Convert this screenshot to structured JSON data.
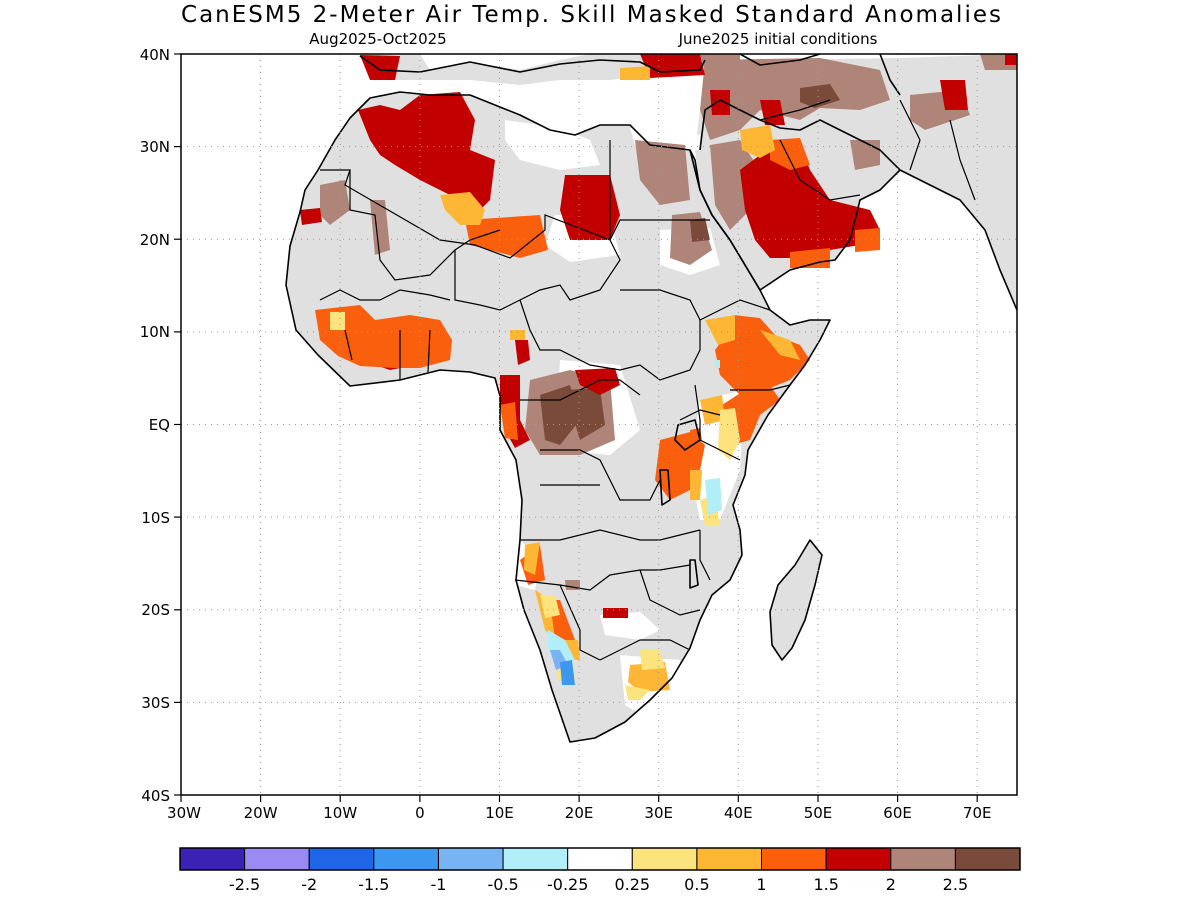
{
  "map": {
    "title": "CanESM5 2-Meter Air Temp. Skill Masked Standard Anomalies",
    "subtitle_left": "Aug2025-Oct2025",
    "subtitle_right": "June2025 initial conditions",
    "lat_labels": [
      "40N",
      "30N",
      "20N",
      "10N",
      "EQ",
      "10S",
      "20S",
      "30S",
      "40S"
    ],
    "lon_labels": [
      "30W",
      "20W",
      "10W",
      "0",
      "10E",
      "20E",
      "30E",
      "40E",
      "50E",
      "60E",
      "70E"
    ],
    "extent": {
      "lon_min": -30,
      "lon_max": 75,
      "lat_min": -40,
      "lat_max": 40
    },
    "masked_color": "#e0e0e0",
    "land_color": "#ffffff",
    "coast_color": "#000000"
  },
  "legend": {
    "colors": [
      "#3b22b4",
      "#9b8af2",
      "#1f66e6",
      "#3c97ef",
      "#78b4f4",
      "#b2eef8",
      "#ffffff",
      "#fde37d",
      "#fdb735",
      "#fa5f0d",
      "#c20000",
      "#b08579",
      "#7a4a3a"
    ],
    "labels": [
      "-2.5",
      "-2",
      "-1.5",
      "-1",
      "-0.5",
      "-0.25",
      "0.25",
      "0.5",
      "1",
      "1.5",
      "2",
      "2.5"
    ]
  }
}
